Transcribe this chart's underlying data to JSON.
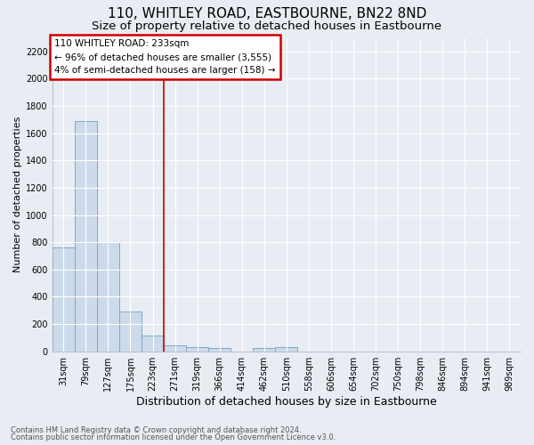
{
  "title": "110, WHITLEY ROAD, EASTBOURNE, BN22 8ND",
  "subtitle": "Size of property relative to detached houses in Eastbourne",
  "xlabel": "Distribution of detached houses by size in Eastbourne",
  "ylabel": "Number of detached properties",
  "categories": [
    "31sqm",
    "79sqm",
    "127sqm",
    "175sqm",
    "223sqm",
    "271sqm",
    "319sqm",
    "366sqm",
    "414sqm",
    "462sqm",
    "510sqm",
    "558sqm",
    "606sqm",
    "654sqm",
    "702sqm",
    "750sqm",
    "798sqm",
    "846sqm",
    "894sqm",
    "941sqm",
    "989sqm"
  ],
  "values": [
    760,
    1690,
    800,
    295,
    115,
    42,
    28,
    22,
    0,
    22,
    28,
    0,
    0,
    0,
    0,
    0,
    0,
    0,
    0,
    0,
    0
  ],
  "bar_color": "#ccdaeb",
  "bar_edge_color": "#7aaac8",
  "bar_edge_width": 0.7,
  "ylim": [
    0,
    2300
  ],
  "yticks": [
    0,
    200,
    400,
    600,
    800,
    1000,
    1200,
    1400,
    1600,
    1800,
    2000,
    2200
  ],
  "vline_x": 4.5,
  "vline_color": "#cc0000",
  "annotation_line1": "110 WHITLEY ROAD: 233sqm",
  "annotation_line2": "← 96% of detached houses are smaller (3,555)",
  "annotation_line3": "4% of semi-detached houses are larger (158) →",
  "annotation_box_color": "#cc0000",
  "footnote1": "Contains HM Land Registry data © Crown copyright and database right 2024.",
  "footnote2": "Contains public sector information licensed under the Open Government Licence v3.0.",
  "bg_color": "#e8edf3",
  "plot_bg_color": "#e8edf3",
  "grid_color": "#ffffff",
  "title_fontsize": 11,
  "subtitle_fontsize": 9.5,
  "tick_fontsize": 7,
  "ylabel_fontsize": 8,
  "xlabel_fontsize": 9
}
